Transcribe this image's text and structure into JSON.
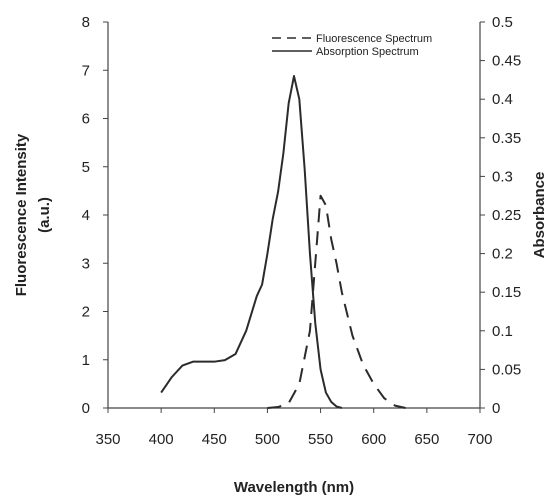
{
  "chart_data": {
    "type": "line",
    "title": "",
    "xlabel": "Wavelength (nm)",
    "ylabel_left": [
      "Fluorescence Intensity",
      "(a.u.)"
    ],
    "ylabel_right": "Absorbance",
    "xlim": [
      350,
      700
    ],
    "ylim_left": [
      0,
      8
    ],
    "ylim_right": [
      0,
      0.5
    ],
    "x_ticks": [
      "350",
      "400",
      "450",
      "500",
      "550",
      "600",
      "650",
      "700"
    ],
    "y_ticks_left": [
      "0",
      "1",
      "2",
      "3",
      "4",
      "5",
      "6",
      "7",
      "8"
    ],
    "y_ticks_right": [
      "0",
      "0.05",
      "0.1",
      "0.15",
      "0.2",
      "0.25",
      "0.3",
      "0.35",
      "0.4",
      "0.45",
      "0.5"
    ],
    "grid": false,
    "legend_position": "top-right",
    "series": [
      {
        "name": "Fluorescence Spectrum",
        "axis": "left",
        "style": "dashed",
        "x": [
          500,
          510,
          520,
          530,
          540,
          545,
          550,
          555,
          560,
          565,
          570,
          580,
          590,
          600,
          610,
          620,
          630
        ],
        "y": [
          0,
          0.02,
          0.1,
          0.5,
          1.6,
          3.0,
          4.4,
          4.2,
          3.5,
          3.0,
          2.4,
          1.5,
          0.9,
          0.5,
          0.2,
          0.05,
          0
        ]
      },
      {
        "name": "Absorption Spectrum",
        "axis": "right",
        "style": "solid",
        "x": [
          400,
          410,
          420,
          430,
          440,
          450,
          460,
          470,
          480,
          490,
          495,
          500,
          505,
          510,
          515,
          520,
          525,
          530,
          535,
          540,
          545,
          550,
          555,
          560,
          565,
          570
        ],
        "y": [
          0.02,
          0.04,
          0.055,
          0.06,
          0.06,
          0.06,
          0.062,
          0.07,
          0.1,
          0.145,
          0.16,
          0.2,
          0.245,
          0.28,
          0.33,
          0.395,
          0.43,
          0.4,
          0.31,
          0.2,
          0.11,
          0.05,
          0.02,
          0.008,
          0.002,
          0
        ]
      }
    ]
  }
}
